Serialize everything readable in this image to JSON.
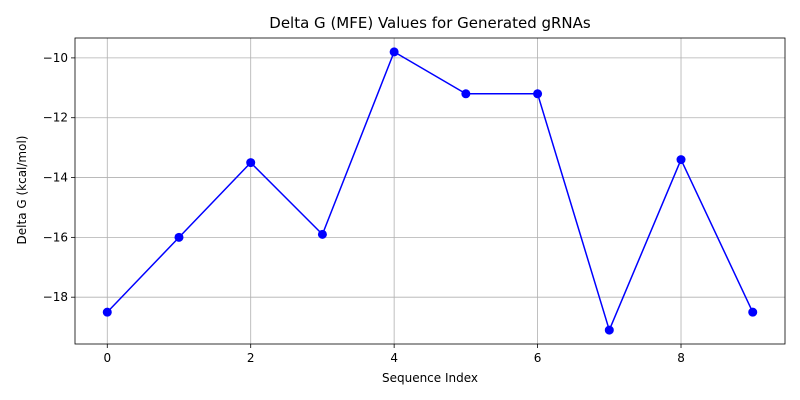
{
  "chart_data": {
    "type": "line",
    "title": "Delta G (MFE) Values for Generated gRNAs",
    "xlabel": "Sequence Index",
    "ylabel": "Delta G (kcal/mol)",
    "x": [
      0,
      1,
      2,
      3,
      4,
      5,
      6,
      7,
      8,
      9
    ],
    "series": [
      {
        "values": [
          -18.5,
          -16.0,
          -13.5,
          -15.9,
          -9.8,
          -11.2,
          -11.2,
          -19.1,
          -13.4,
          -18.5
        ],
        "color": "#0000ff",
        "marker": "circle"
      }
    ],
    "xlim": [
      -0.45,
      9.45
    ],
    "ylim": [
      -19.565,
      -9.335
    ],
    "xticks": [
      0,
      2,
      4,
      6,
      8
    ],
    "xtick_labels": [
      "0",
      "2",
      "4",
      "6",
      "8"
    ],
    "yticks": [
      -18,
      -16,
      -14,
      -12,
      -10
    ],
    "ytick_labels": [
      "−18",
      "−16",
      "−14",
      "−12",
      "−10"
    ],
    "grid": true,
    "grid_color": "#b0b0b0",
    "legend": "none"
  }
}
